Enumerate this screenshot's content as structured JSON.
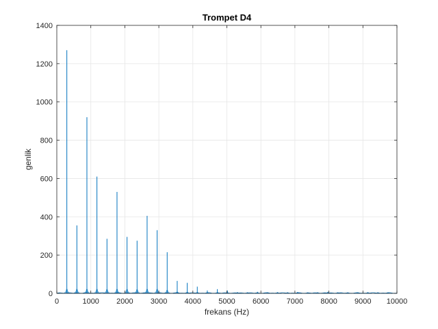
{
  "chart_data": {
    "type": "line",
    "title": "Trompet D4",
    "xlabel": "frekans (Hz)",
    "ylabel": "genlik",
    "xlim": [
      0,
      10000
    ],
    "ylim": [
      0,
      1400
    ],
    "xticks": [
      0,
      1000,
      2000,
      3000,
      4000,
      5000,
      6000,
      7000,
      8000,
      9000,
      10000
    ],
    "yticks": [
      0,
      200,
      400,
      600,
      800,
      1000,
      1200,
      1400
    ],
    "grid": true,
    "series": [
      {
        "color": "#0072bd",
        "fundamental_hz": 295,
        "peaks": [
          {
            "x": 295,
            "y": 1270
          },
          {
            "x": 590,
            "y": 355
          },
          {
            "x": 885,
            "y": 920
          },
          {
            "x": 1180,
            "y": 610
          },
          {
            "x": 1475,
            "y": 285
          },
          {
            "x": 1770,
            "y": 530
          },
          {
            "x": 2065,
            "y": 295
          },
          {
            "x": 2360,
            "y": 275
          },
          {
            "x": 2655,
            "y": 405
          },
          {
            "x": 2950,
            "y": 330
          },
          {
            "x": 3245,
            "y": 215
          },
          {
            "x": 3540,
            "y": 65
          },
          {
            "x": 3835,
            "y": 55
          },
          {
            "x": 4130,
            "y": 35
          },
          {
            "x": 4425,
            "y": 15
          },
          {
            "x": 4720,
            "y": 22
          },
          {
            "x": 5015,
            "y": 15
          },
          {
            "x": 5310,
            "y": 6
          },
          {
            "x": 5605,
            "y": 5
          },
          {
            "x": 5900,
            "y": 8
          },
          {
            "x": 6195,
            "y": 4
          },
          {
            "x": 6490,
            "y": 6
          },
          {
            "x": 6785,
            "y": 5
          },
          {
            "x": 7080,
            "y": 7
          },
          {
            "x": 7375,
            "y": 4
          },
          {
            "x": 7670,
            "y": 5
          },
          {
            "x": 7965,
            "y": 8
          },
          {
            "x": 8260,
            "y": 5
          },
          {
            "x": 8555,
            "y": 4
          },
          {
            "x": 8850,
            "y": 5
          },
          {
            "x": 9145,
            "y": 6
          },
          {
            "x": 9440,
            "y": 5
          },
          {
            "x": 9735,
            "y": 4
          }
        ]
      }
    ]
  }
}
